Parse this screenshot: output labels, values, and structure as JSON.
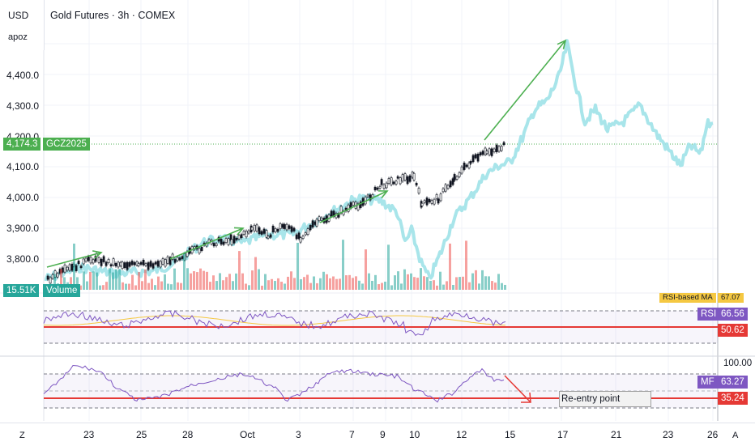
{
  "header": {
    "currency": "USD",
    "user": "apoz",
    "symbol_title": "Gold Futures · 3h · COMEX"
  },
  "price_axis": {
    "ticks": [
      "4,400.0",
      "4,300.0",
      "4,200.0",
      "4,100.0",
      "4,000.0",
      "3,900.0",
      "3,800.0"
    ]
  },
  "price_tag": {
    "value": "4,174.3",
    "ticker": "GCZ2025",
    "color": "#4caf50"
  },
  "volume_tag": {
    "value": "15.51K",
    "label": "Volume",
    "color": "#26a69a"
  },
  "rsi_panel": {
    "label": "RSI",
    "value": "66.56",
    "line_value": "50.62",
    "ma_label": "RSI-based MA",
    "ma_value": "67.07"
  },
  "mfi_panel": {
    "label": "MF",
    "value": "63.27",
    "line_value": "35.24",
    "top_tick": "100.00",
    "annotation": "Re-entry point"
  },
  "time_axis": {
    "dates": [
      "23",
      "25",
      "28",
      "Oct",
      "3",
      "7",
      "9",
      "10",
      "12",
      "15",
      "17",
      "21",
      "23",
      "26"
    ]
  },
  "toolbar": {
    "left_corner": "Z",
    "right_corner": "A"
  },
  "colors": {
    "up": "#26a69a",
    "down": "#ef5350",
    "candle": "#131722",
    "projection": "#9fe2e8",
    "arrow": "#4caf50",
    "rsi_line": "#7e57c2",
    "ma_line": "#f5c842",
    "red_line": "#e53935"
  }
}
